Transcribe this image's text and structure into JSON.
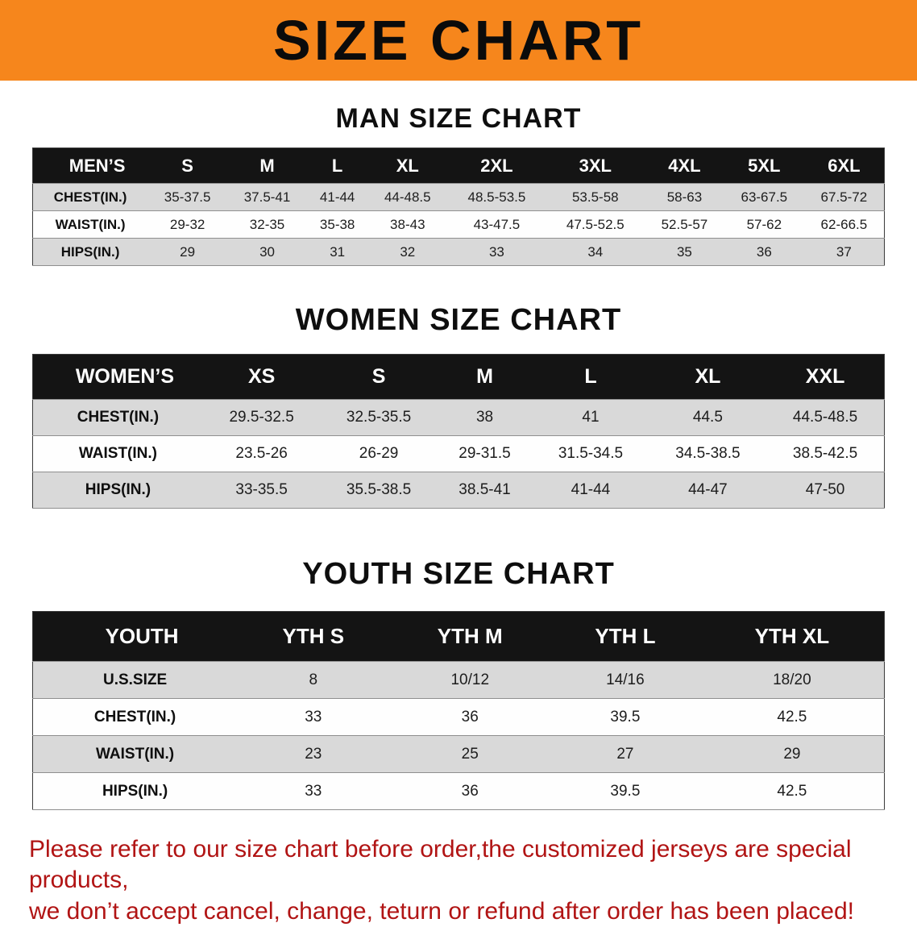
{
  "banner": {
    "title": "SIZE CHART"
  },
  "men": {
    "heading": "MAN SIZE CHART",
    "table": {
      "label": "MEN’S",
      "sizes": [
        "S",
        "M",
        "L",
        "XL",
        "2XL",
        "3XL",
        "4XL",
        "5XL",
        "6XL"
      ],
      "rows": [
        {
          "label": "CHEST(IN.)",
          "values": [
            "35-37.5",
            "37.5-41",
            "41-44",
            "44-48.5",
            "48.5-53.5",
            "53.5-58",
            "58-63",
            "63-67.5",
            "67.5-72"
          ]
        },
        {
          "label": "WAIST(IN.)",
          "values": [
            "29-32",
            "32-35",
            "35-38",
            "38-43",
            "43-47.5",
            "47.5-52.5",
            "52.5-57",
            "57-62",
            "62-66.5"
          ]
        },
        {
          "label": "HIPS(IN.)",
          "values": [
            "29",
            "30",
            "31",
            "32",
            "33",
            "34",
            "35",
            "36",
            "37"
          ]
        }
      ]
    }
  },
  "women": {
    "heading": "WOMEN SIZE CHART",
    "table": {
      "label": "WOMEN’S",
      "sizes": [
        "XS",
        "S",
        "M",
        "L",
        "XL",
        "XXL"
      ],
      "rows": [
        {
          "label": "CHEST(IN.)",
          "values": [
            "29.5-32.5",
            "32.5-35.5",
            "38",
            "41",
            "44.5",
            "44.5-48.5"
          ]
        },
        {
          "label": "WAIST(IN.)",
          "values": [
            "23.5-26",
            "26-29",
            "29-31.5",
            "31.5-34.5",
            "34.5-38.5",
            "38.5-42.5"
          ]
        },
        {
          "label": "HIPS(IN.)",
          "values": [
            "33-35.5",
            "35.5-38.5",
            "38.5-41",
            "41-44",
            "44-47",
            "47-50"
          ]
        }
      ]
    }
  },
  "youth": {
    "heading": "YOUTH SIZE CHART",
    "table": {
      "label": "YOUTH",
      "sizes": [
        "YTH S",
        "YTH M",
        "YTH L",
        "YTH XL"
      ],
      "rows": [
        {
          "label": "U.S.SIZE",
          "values": [
            "8",
            "10/12",
            "14/16",
            "18/20"
          ]
        },
        {
          "label": "CHEST(IN.)",
          "values": [
            "33",
            "36",
            "39.5",
            "42.5"
          ]
        },
        {
          "label": "WAIST(IN.)",
          "values": [
            "23",
            "25",
            "27",
            "29"
          ]
        },
        {
          "label": "HIPS(IN.)",
          "values": [
            "33",
            "36",
            "39.5",
            "42.5"
          ]
        }
      ]
    }
  },
  "footer": {
    "line1": "Please refer to our size chart before order,the customized jerseys are special products,",
    "line2": "we don’t accept cancel, change, teturn or refund after order has been placed!"
  },
  "colors": {
    "banner_bg": "#F6861C",
    "table_header_bg": "#141414",
    "shaded_row_bg": "#d9d9d9",
    "footer_text": "#b11414"
  }
}
